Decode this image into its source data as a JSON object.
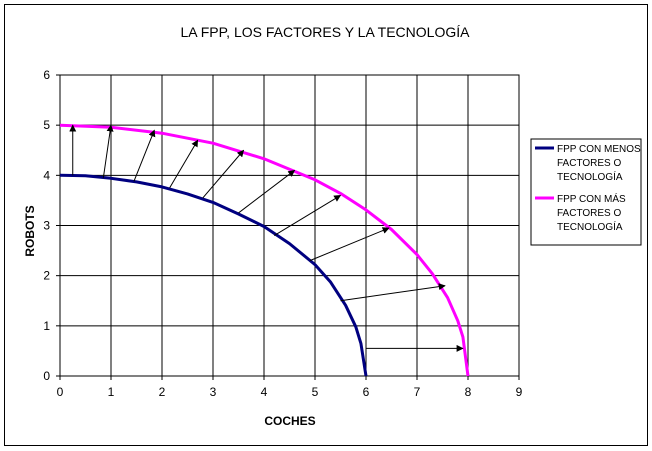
{
  "chart_data": {
    "type": "line",
    "title": "LA FPP, LOS FACTORES Y LA TECNOLOGÍA",
    "xlabel": "COCHES",
    "ylabel": "ROBOTS",
    "xlim": [
      0,
      9
    ],
    "ylim": [
      0,
      6
    ],
    "x_ticks": [
      "0",
      "1",
      "2",
      "3",
      "4",
      "5",
      "6",
      "7",
      "8",
      "9"
    ],
    "y_ticks": [
      "0",
      "1",
      "2",
      "3",
      "4",
      "5",
      "6"
    ],
    "grid": true,
    "legend_position": "right",
    "series": [
      {
        "name": "FPP CON MENOS FACTORES O TECNOLOGÍA",
        "color": "#000080",
        "x": [
          0,
          0.5,
          1,
          1.5,
          2,
          2.5,
          3,
          3.5,
          4,
          4.5,
          5,
          5.3,
          5.6,
          5.8,
          5.9,
          6
        ],
        "y": [
          4,
          3.99,
          3.94,
          3.87,
          3.77,
          3.63,
          3.46,
          3.23,
          2.98,
          2.64,
          2.22,
          1.88,
          1.41,
          0.98,
          0.65,
          0
        ]
      },
      {
        "name": "FPP CON MÁS FACTORES O TECNOLOGÍA",
        "color": "#ff00ff",
        "x": [
          0,
          1,
          2,
          3,
          4,
          5,
          5.5,
          6,
          6.5,
          7,
          7.3,
          7.6,
          7.8,
          7.9,
          8
        ],
        "y": [
          5,
          4.96,
          4.84,
          4.64,
          4.33,
          3.91,
          3.64,
          3.31,
          2.92,
          2.42,
          2.04,
          1.56,
          1.1,
          0.78,
          0
        ]
      }
    ],
    "arrows": [
      {
        "from": [
          0.25,
          4.0
        ],
        "to": [
          0.25,
          5.0
        ]
      },
      {
        "from": [
          0.85,
          3.95
        ],
        "to": [
          1.0,
          5.0
        ]
      },
      {
        "from": [
          1.45,
          3.88
        ],
        "to": [
          1.85,
          4.9
        ]
      },
      {
        "from": [
          2.15,
          3.75
        ],
        "to": [
          2.7,
          4.7
        ]
      },
      {
        "from": [
          2.8,
          3.55
        ],
        "to": [
          3.6,
          4.5
        ]
      },
      {
        "from": [
          3.5,
          3.25
        ],
        "to": [
          4.6,
          4.1
        ]
      },
      {
        "from": [
          4.2,
          2.8
        ],
        "to": [
          5.5,
          3.6
        ]
      },
      {
        "from": [
          4.9,
          2.3
        ],
        "to": [
          6.45,
          2.95
        ]
      },
      {
        "from": [
          5.5,
          1.5
        ],
        "to": [
          7.55,
          1.8
        ]
      },
      {
        "from": [
          6.0,
          0.55
        ],
        "to": [
          7.9,
          0.55
        ]
      }
    ]
  }
}
